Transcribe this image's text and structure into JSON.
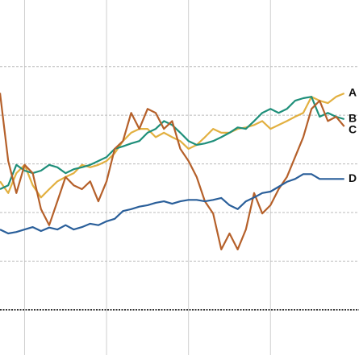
{
  "chart_data": {
    "type": "line",
    "x": [
      0.7,
      0.8,
      0.9,
      1.0,
      1.1,
      1.2,
      1.3,
      1.4,
      1.5,
      1.6,
      1.7,
      1.8,
      1.9,
      2.0,
      2.1,
      2.2,
      2.3,
      2.4,
      2.5,
      2.6,
      2.7,
      2.8,
      2.9,
      3.0,
      3.1,
      3.2,
      3.3,
      3.4,
      3.5,
      3.6,
      3.7,
      3.8,
      3.9,
      4.0,
      4.1,
      4.2,
      4.3,
      4.4,
      4.5,
      4.6,
      4.7,
      4.8,
      4.9
    ],
    "xlim": [
      0.7,
      5.08
    ],
    "xticks": [
      1,
      2,
      3,
      4
    ],
    "ylim": [
      -0.93,
      6.37
    ],
    "yticks": [
      0,
      1,
      2,
      3,
      4,
      5
    ],
    "grid": true,
    "series": [
      {
        "name": "A",
        "color": "#e2b040",
        "values": [
          2.64,
          2.4,
          2.81,
          2.98,
          2.56,
          2.31,
          2.48,
          2.64,
          2.73,
          2.81,
          2.98,
          2.93,
          2.98,
          3.06,
          3.22,
          3.47,
          3.64,
          3.72,
          3.72,
          3.55,
          3.64,
          3.55,
          3.47,
          3.31,
          3.39,
          3.55,
          3.72,
          3.64,
          3.64,
          3.72,
          3.75,
          3.8,
          3.88,
          3.72,
          3.8,
          3.88,
          3.97,
          4.05,
          4.38,
          4.3,
          4.25,
          4.38,
          4.45
        ]
      },
      {
        "name": "B",
        "color": "#1f8f7a",
        "values": [
          2.48,
          2.56,
          2.98,
          2.86,
          2.81,
          2.86,
          2.98,
          2.93,
          2.81,
          2.89,
          2.93,
          2.98,
          3.06,
          3.14,
          3.31,
          3.36,
          3.42,
          3.47,
          3.64,
          3.72,
          3.88,
          3.8,
          3.64,
          3.47,
          3.39,
          3.42,
          3.47,
          3.55,
          3.64,
          3.75,
          3.72,
          3.88,
          4.05,
          4.13,
          4.05,
          4.13,
          4.3,
          4.35,
          4.38,
          3.97,
          4.05,
          3.97,
          3.92
        ]
      },
      {
        "name": "C",
        "color": "#b5602a",
        "values": [
          4.46,
          3.06,
          2.4,
          2.98,
          2.81,
          2.07,
          1.74,
          2.23,
          2.73,
          2.56,
          2.48,
          2.64,
          2.23,
          2.64,
          3.31,
          3.47,
          4.05,
          3.72,
          4.13,
          4.05,
          3.72,
          3.88,
          3.31,
          3.06,
          2.73,
          2.23,
          1.98,
          1.24,
          1.57,
          1.24,
          1.65,
          2.4,
          1.98,
          2.15,
          2.48,
          2.73,
          3.14,
          3.55,
          4.13,
          4.3,
          3.88,
          3.97,
          3.77
        ]
      },
      {
        "name": "D",
        "color": "#2a5f9a",
        "values": [
          1.65,
          1.57,
          1.6,
          1.65,
          1.7,
          1.62,
          1.69,
          1.65,
          1.74,
          1.65,
          1.7,
          1.77,
          1.74,
          1.82,
          1.87,
          2.03,
          2.07,
          2.12,
          2.15,
          2.2,
          2.23,
          2.18,
          2.23,
          2.26,
          2.26,
          2.23,
          2.26,
          2.3,
          2.15,
          2.07,
          2.23,
          2.31,
          2.4,
          2.43,
          2.53,
          2.63,
          2.69,
          2.79,
          2.79,
          2.69,
          2.69,
          2.69,
          2.69
        ]
      }
    ]
  }
}
